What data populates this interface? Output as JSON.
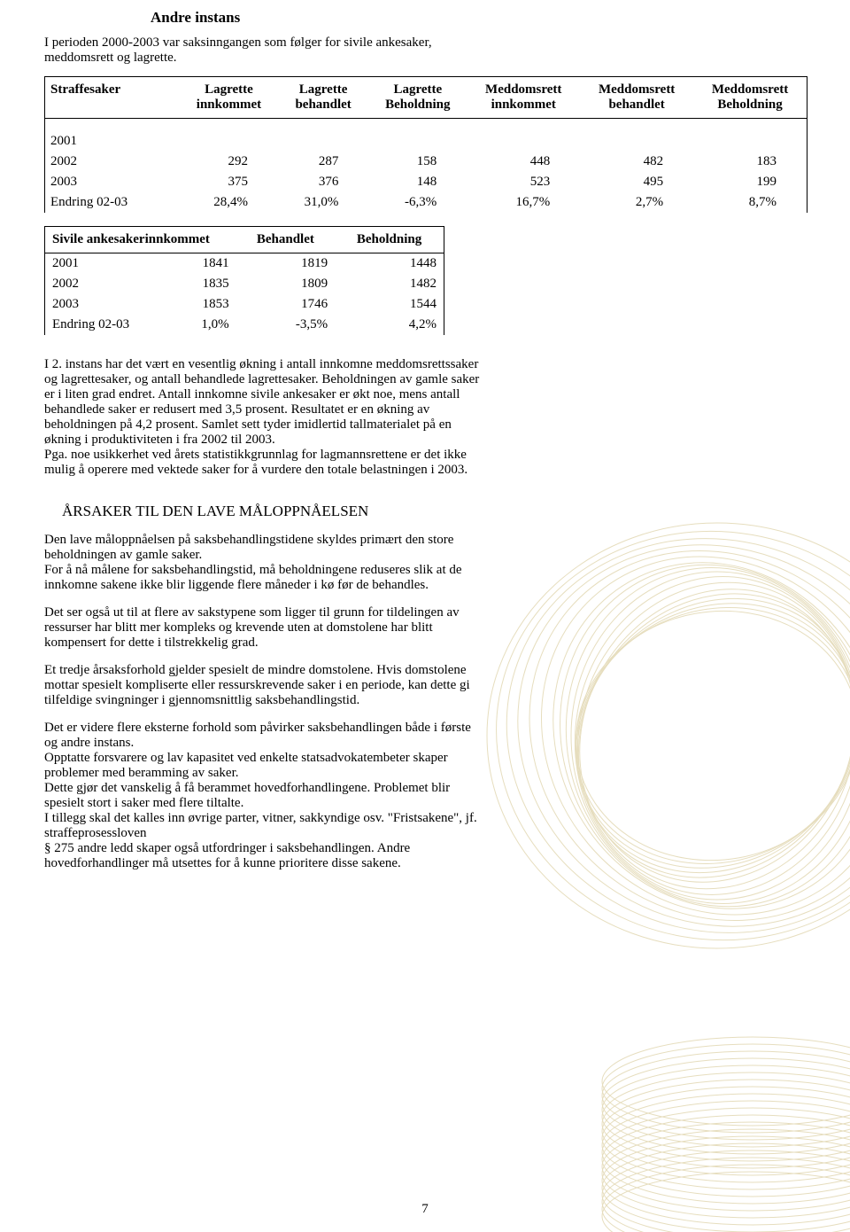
{
  "headline": "Andre instans",
  "intro": "I perioden 2000-2003 var saksinngangen som følger for sivile ankesaker, meddomsrett og lagrette.",
  "table1": {
    "headers": [
      "Straffesaker",
      "Lagrette innkommet",
      "Lagrette behandlet",
      "Lagrette Beholdning",
      "Meddomsrett innkommet",
      "Meddomsrett behandlet",
      "Meddomsrett Beholdning"
    ],
    "h_top": [
      "Straffesaker",
      "Lagrette",
      "Lagrette",
      "Lagrette",
      "Meddomsrett",
      "Meddomsrett",
      "Meddomsrett"
    ],
    "h_bot": [
      "",
      "innkommet",
      "behandlet",
      "Beholdning",
      "innkommet",
      "behandlet",
      "Beholdning"
    ],
    "rows": [
      [
        "2001",
        "",
        "",
        "",
        "",
        "",
        ""
      ],
      [
        "2002",
        "292",
        "287",
        "158",
        "448",
        "482",
        "183"
      ],
      [
        "2003",
        "375",
        "376",
        "148",
        "523",
        "495",
        "199"
      ],
      [
        "Endring 02-03",
        "28,4%",
        "31,0%",
        "-6,3%",
        "16,7%",
        "2,7%",
        "8,7%"
      ]
    ]
  },
  "table2": {
    "h": [
      "Sivile ankesakerinnkommet",
      "Behandlet",
      "Beholdning"
    ],
    "rows": [
      [
        "2001",
        "1841",
        "1819",
        "1448"
      ],
      [
        "2002",
        "1835",
        "1809",
        "1482"
      ],
      [
        "2003",
        "1853",
        "1746",
        "1544"
      ],
      [
        "Endring 02-03",
        "1,0%",
        "-3,5%",
        "4,2%"
      ]
    ]
  },
  "para1": "I 2. instans har det vært en vesentlig økning i antall innkomne meddomsrettssaker og lagrettesaker, og antall behandlede lagrettesaker. Beholdningen av gamle saker er i liten grad endret. Antall innkomne sivile ankesaker er økt noe, mens antall behandlede saker er redusert med 3,5 prosent. Resultatet er en økning av beholdningen på 4,2 prosent. Samlet sett tyder imidlertid tallmaterialet på en økning i produktiviteten i fra 2002 til 2003.",
  "para1b": "Pga. noe usikkerhet ved årets statistikkgrunnlag for lagmannsrettene er det ikke mulig å operere med vektede saker for å vurdere den totale belastningen i 2003.",
  "subhead": "ÅRSAKER TIL DEN LAVE MÅLOPPNÅELSEN",
  "p2": "Den lave måloppnåelsen på saksbehandlingstidene skyldes primært den store beholdningen av gamle saker.",
  "p2b": "For å nå målene for saksbehandlingstid, må beholdningene reduseres slik at de innkomne sakene ikke blir liggende flere måneder i kø før de behandles.",
  "p3": "Det ser også ut til at flere av sakstypene som ligger til grunn for tildelingen av ressurser har blitt mer kompleks og krevende uten at domstolene har blitt kompensert for dette i tilstrekkelig grad.",
  "p4": "Et tredje årsaksforhold gjelder spesielt de mindre domstolene. Hvis domstolene mottar spesielt kompliserte eller ressurskrevende saker i en periode, kan dette gi tilfeldige svingninger i gjennomsnittlig saksbehandlingstid.",
  "p5": "Det er videre flere eksterne forhold som påvirker saksbehandlingen både i første og andre instans.",
  "p5b": "Opptatte forsvarere og lav kapasitet ved enkelte statsadvokatembeter skaper problemer med beramming av saker.",
  "p5c": "Dette gjør det vanskelig å få berammet hovedforhandlingene. Problemet blir spesielt stort i saker med flere tiltalte.",
  "p5d": "I tillegg skal det kalles inn øvrige parter, vitner, sakkyndige osv. \"Fristsakene\", jf. straffeprosessloven",
  "p5e": "§ 275 andre ledd skaper også utfordringer i saksbehandlingen. Andre hovedforhandlinger må utsettes for å kunne prioritere disse sakene.",
  "pagenum": "7",
  "art_color": "#d6c893"
}
